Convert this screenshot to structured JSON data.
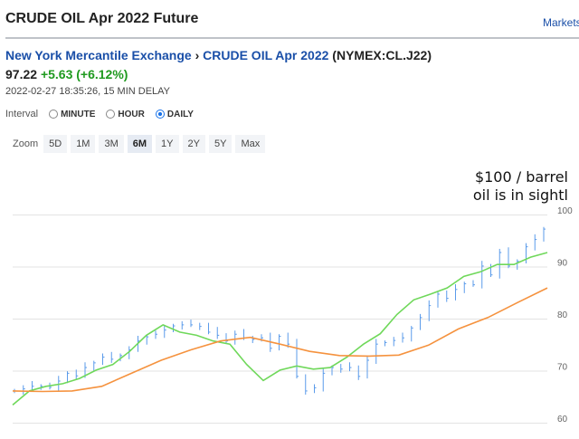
{
  "header": {
    "title": "CRUDE OIL Apr 2022 Future",
    "markets_link": "Markets"
  },
  "breadcrumb": {
    "exchange": "New York Mercantile Exchange",
    "separator": " › ",
    "contract": "CRUDE OIL Apr 2022",
    "symbol": " (NYMEX:CL.J22)"
  },
  "quote": {
    "price": "97.22",
    "change": "+5.63 (+6.12%)",
    "timestamp": "2022-02-27 18:35:26, 15 MIN DELAY"
  },
  "interval": {
    "label": "Interval",
    "options": [
      "MINUTE",
      "HOUR",
      "DAILY"
    ],
    "selected": "DAILY"
  },
  "zoom": {
    "label": "Zoom",
    "options": [
      "5D",
      "1M",
      "3M",
      "6M",
      "1Y",
      "2Y",
      "5Y",
      "Max"
    ],
    "selected": "6M"
  },
  "annotation": {
    "line1": "$100 / barrel",
    "line2": "oil is in sightl"
  },
  "colors": {
    "price_bars": "#5b9bea",
    "ma_short": "#6fd85a",
    "ma_long": "#f5923e",
    "grid": "#e3e3e3"
  },
  "chart_data": {
    "type": "line",
    "ylim": [
      60,
      100
    ],
    "yticks": [
      "60",
      "70",
      "80",
      "90",
      "100"
    ],
    "grid": true,
    "series": [
      {
        "kind": "ohlc-close",
        "values": [
          66.1,
          66.5,
          67,
          67,
          66.8,
          68,
          69.5,
          69,
          70.6,
          71.5,
          72.6,
          72.2,
          72.9,
          74,
          75.7,
          76.5,
          77,
          77.8,
          78.6,
          78.8,
          78.8,
          78.5,
          77.4,
          76.8,
          75.7,
          77,
          76.3,
          76,
          76.3,
          74.3,
          76.6,
          75.1,
          68.9,
          66.1,
          66.7,
          69.5,
          70.6,
          70.3,
          70.6,
          68.9,
          72,
          75.1,
          75.4,
          75.8,
          76.3,
          78.2,
          80.2,
          82.5,
          84.7,
          83.9,
          85.6,
          86.7,
          86.5,
          90.1,
          88.4,
          92.7,
          90.1,
          91,
          93.8,
          95.2,
          97.2
        ]
      },
      {
        "kind": "ma-short",
        "values": [
          63.4,
          66.1,
          67,
          67.5,
          68.5,
          70.1,
          71.2,
          73.7,
          76.8,
          78.8,
          77.4,
          76.8,
          75.7,
          75.1,
          71.2,
          68.1,
          70.1,
          70.9,
          70.3,
          70.6,
          72.6,
          75.1,
          77.1,
          80.8,
          83.6,
          84.7,
          85.9,
          88.1,
          89,
          90.4,
          90.4,
          91.8,
          92.7
        ]
      },
      {
        "kind": "ma-long",
        "values": [
          66.1,
          66,
          66.1,
          67,
          69.5,
          72,
          74,
          75.7,
          76.4,
          75.1,
          73.7,
          72.9,
          72.8,
          73,
          74.9,
          78,
          80.2,
          83.1,
          85.9
        ]
      }
    ]
  }
}
